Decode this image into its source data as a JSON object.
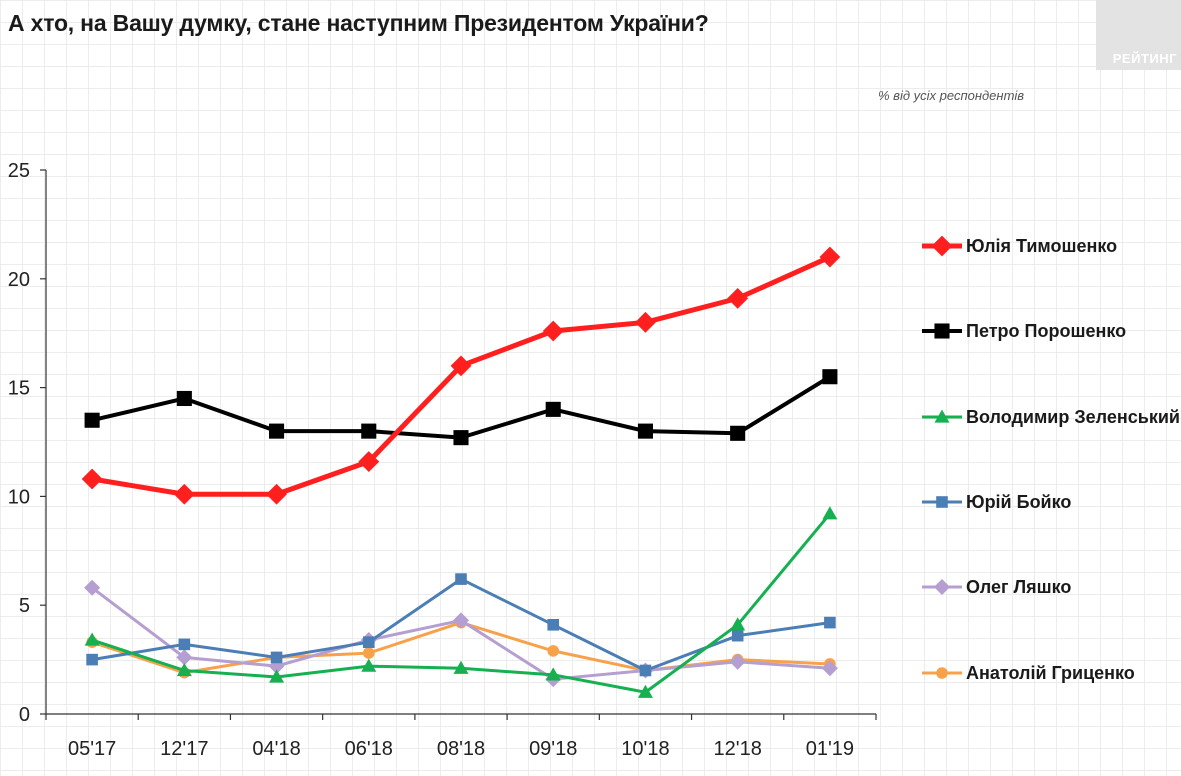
{
  "header": {
    "title": "А хто, на Вашу думку, стане наступним Президентом України?",
    "brand": "РЕЙТИНГ",
    "subtitle": "% від усіх респондентів"
  },
  "chart_data": {
    "type": "line",
    "categories": [
      "05'17",
      "12'17",
      "04'18",
      "06'18",
      "08'18",
      "09'18",
      "10'18",
      "12'18",
      "01'19"
    ],
    "ylim": [
      0,
      25
    ],
    "yticks": [
      0,
      5,
      10,
      15,
      20,
      25
    ],
    "grid": false,
    "legend_position": "right",
    "series": [
      {
        "name": "Юлія Тимошенко",
        "color": "#ff1f1f",
        "marker": "diamond",
        "width": 5,
        "values": [
          10.8,
          10.1,
          10.1,
          11.6,
          16.0,
          17.6,
          18.0,
          19.1,
          21.0
        ]
      },
      {
        "name": "Петро Порошенко",
        "color": "#000000",
        "marker": "square",
        "width": 4,
        "values": [
          13.5,
          14.5,
          13.0,
          13.0,
          12.7,
          14.0,
          13.0,
          12.9,
          15.5
        ]
      },
      {
        "name": "Володимир Зеленський",
        "color": "#15b050",
        "marker": "triangle",
        "width": 3,
        "values": [
          3.4,
          2.0,
          1.7,
          2.2,
          2.1,
          1.8,
          1.0,
          4.1,
          9.2
        ]
      },
      {
        "name": "Юрій Бойко",
        "color": "#4a7eb5",
        "marker": "square",
        "width": 3,
        "values": [
          2.5,
          3.2,
          2.6,
          3.3,
          6.2,
          4.1,
          2.0,
          3.6,
          4.2
        ]
      },
      {
        "name": "Олег Ляшко",
        "color": "#b59ed0",
        "marker": "diamond",
        "width": 3,
        "values": [
          5.8,
          2.6,
          2.2,
          3.4,
          4.3,
          1.6,
          2.0,
          2.4,
          2.1
        ]
      },
      {
        "name": "Анатолій Гриценко",
        "color": "#f7a24a",
        "marker": "circle",
        "width": 3,
        "values": [
          3.3,
          1.9,
          2.6,
          2.8,
          4.2,
          2.9,
          2.0,
          2.5,
          2.3
        ]
      }
    ]
  }
}
